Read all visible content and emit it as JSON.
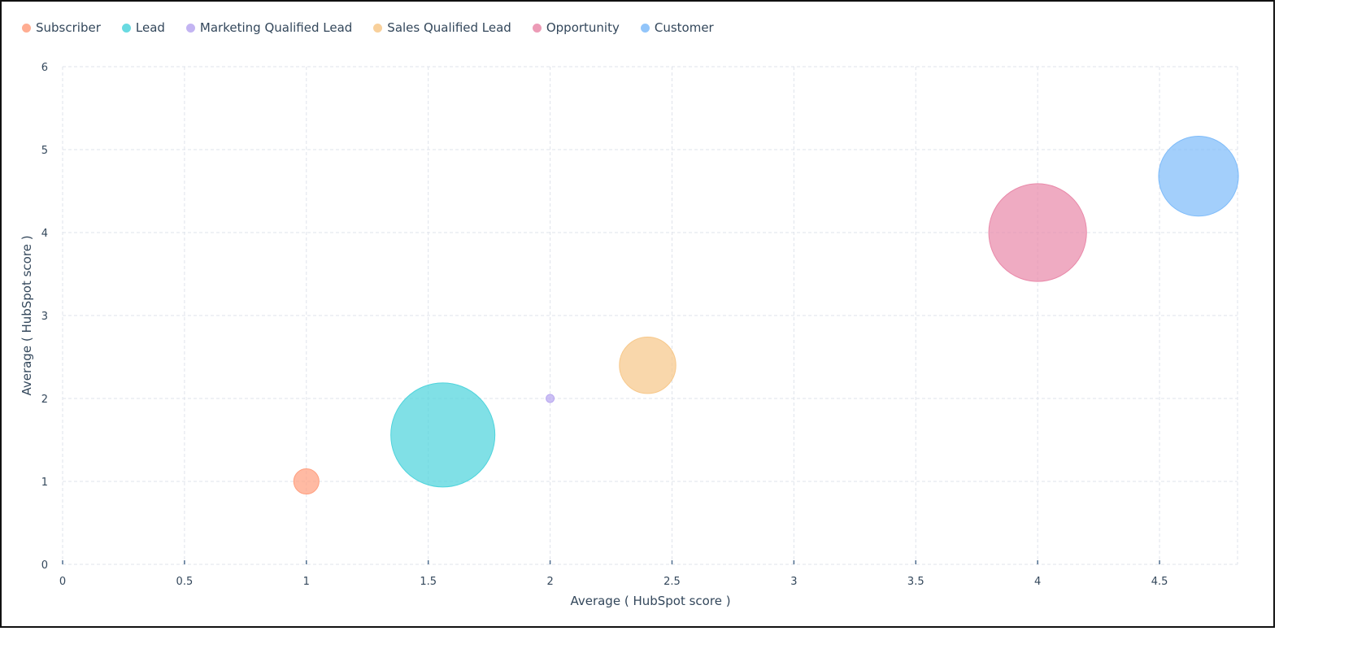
{
  "chart_data": {
    "type": "bubble",
    "xlabel": "Average ( HubSpot score )",
    "ylabel": "Average ( HubSpot score )",
    "xlim": [
      0,
      4.82
    ],
    "ylim": [
      0,
      6
    ],
    "x_ticks": [
      "0",
      "0.5",
      "1",
      "1.5",
      "2",
      "2.5",
      "3",
      "3.5",
      "4",
      "4.5"
    ],
    "x_tick_values": [
      0,
      0.5,
      1,
      1.5,
      2,
      2.5,
      3,
      3.5,
      4,
      4.5
    ],
    "y_ticks": [
      "0",
      "1",
      "2",
      "3",
      "4",
      "5",
      "6"
    ],
    "y_tick_values": [
      0,
      1,
      2,
      3,
      4,
      5,
      6
    ],
    "grid": true,
    "legend_position": "top-left",
    "series": [
      {
        "name": "Subscriber",
        "color": "#ff9f7f",
        "x": 1.0,
        "y": 1.0,
        "size": 1.0
      },
      {
        "name": "Lead",
        "color": "#4fd4dc",
        "x": 1.56,
        "y": 1.56,
        "size": 17.0
      },
      {
        "name": "Marketing Qualified Lead",
        "color": "#b9a8f0",
        "x": 2.0,
        "y": 2.0,
        "size": 0.1
      },
      {
        "name": "Sales Qualified Lead",
        "color": "#f7c88a",
        "x": 2.4,
        "y": 2.4,
        "size": 5.0
      },
      {
        "name": "Opportunity",
        "color": "#e98aaa",
        "x": 4.0,
        "y": 4.0,
        "size": 15.0
      },
      {
        "name": "Customer",
        "color": "#7fbcfa",
        "x": 4.66,
        "y": 4.68,
        "size": 10.0
      }
    ]
  }
}
